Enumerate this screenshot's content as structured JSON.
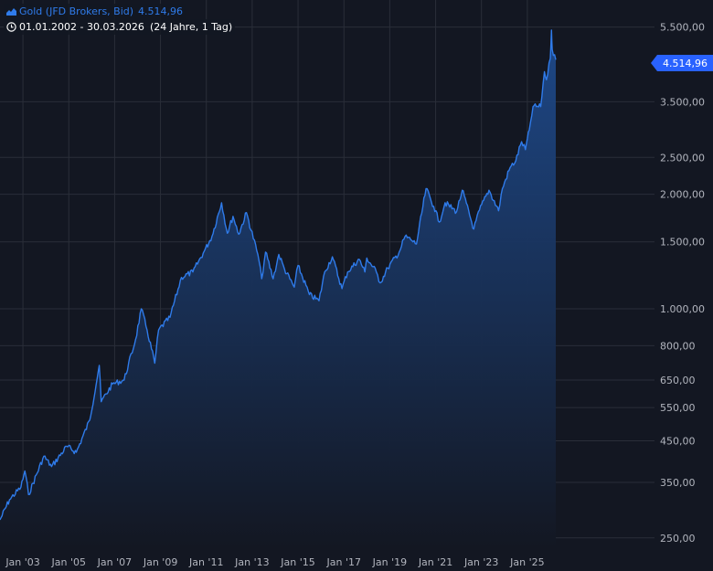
{
  "legend": {
    "title": "Gold (JFD Brokers, Bid)",
    "last_price": "4.514,96",
    "range": "01.01.2002 - 30.03.2026",
    "duration": "(24 Jahre, 1 Tag)",
    "line_icon": "area-chart-icon",
    "range_icon": "clock-icon"
  },
  "last_price_tag": "4.514,96",
  "colors": {
    "background": "#131722",
    "grid": "#2a2e39",
    "line": "#2f7bea",
    "area_top": "#1e4a8c",
    "area_bottom": "#131722",
    "axis_text": "#b2b5be",
    "tag_bg": "#2962ff"
  },
  "chart_data": {
    "type": "area",
    "title": "Gold (JFD Brokers, Bid)",
    "y_scale": "log",
    "ylim": [
      235,
      6200
    ],
    "xlim": [
      "2002-01-01",
      "2026-03-30"
    ],
    "grid": true,
    "x_ticks": [
      {
        "date": "2003-01-01",
        "label": "Jan '03"
      },
      {
        "date": "2005-01-01",
        "label": "Jan '05"
      },
      {
        "date": "2007-01-01",
        "label": "Jan '07"
      },
      {
        "date": "2009-01-01",
        "label": "Jan '09"
      },
      {
        "date": "2011-01-01",
        "label": "Jan '11"
      },
      {
        "date": "2013-01-01",
        "label": "Jan '13"
      },
      {
        "date": "2015-01-01",
        "label": "Jan '15"
      },
      {
        "date": "2017-01-01",
        "label": "Jan '17"
      },
      {
        "date": "2019-01-01",
        "label": "Jan '19"
      },
      {
        "date": "2021-01-01",
        "label": "Jan '21"
      },
      {
        "date": "2023-01-01",
        "label": "Jan '23"
      },
      {
        "date": "2025-01-01",
        "label": "Jan '25"
      }
    ],
    "y_ticks": [
      {
        "value": 5500,
        "label": "5.500,00"
      },
      {
        "value": 3500,
        "label": "3.500,00"
      },
      {
        "value": 2500,
        "label": "2.500,00"
      },
      {
        "value": 2000,
        "label": "2.000,00"
      },
      {
        "value": 1500,
        "label": "1.500,00"
      },
      {
        "value": 1000,
        "label": "1.000,00"
      },
      {
        "value": 800,
        "label": "800,00"
      },
      {
        "value": 650,
        "label": "650,00"
      },
      {
        "value": 550,
        "label": "550,00"
      },
      {
        "value": 450,
        "label": "450,00"
      },
      {
        "value": 350,
        "label": "350,00"
      },
      {
        "value": 250,
        "label": "250,00"
      }
    ],
    "series": [
      {
        "values": [
          [
            "2002-01-01",
            279
          ],
          [
            "2002-06-01",
            315
          ],
          [
            "2002-12-01",
            340
          ],
          [
            "2003-02-01",
            375
          ],
          [
            "2003-04-01",
            325
          ],
          [
            "2003-12-01",
            410
          ],
          [
            "2004-04-01",
            385
          ],
          [
            "2004-12-01",
            435
          ],
          [
            "2005-05-01",
            420
          ],
          [
            "2005-12-01",
            510
          ],
          [
            "2006-05-01",
            710
          ],
          [
            "2006-06-01",
            570
          ],
          [
            "2006-12-01",
            635
          ],
          [
            "2007-06-01",
            650
          ],
          [
            "2007-12-01",
            830
          ],
          [
            "2008-03-01",
            1000
          ],
          [
            "2008-06-01",
            880
          ],
          [
            "2008-10-01",
            720
          ],
          [
            "2008-12-01",
            880
          ],
          [
            "2009-06-01",
            950
          ],
          [
            "2009-12-01",
            1210
          ],
          [
            "2010-06-01",
            1250
          ],
          [
            "2010-12-01",
            1420
          ],
          [
            "2011-04-01",
            1550
          ],
          [
            "2011-09-01",
            1900
          ],
          [
            "2011-12-01",
            1580
          ],
          [
            "2012-03-01",
            1750
          ],
          [
            "2012-06-01",
            1570
          ],
          [
            "2012-10-01",
            1790
          ],
          [
            "2013-04-01",
            1390
          ],
          [
            "2013-06-01",
            1200
          ],
          [
            "2013-08-01",
            1410
          ],
          [
            "2013-12-01",
            1200
          ],
          [
            "2014-03-01",
            1390
          ],
          [
            "2014-06-01",
            1270
          ],
          [
            "2014-11-01",
            1140
          ],
          [
            "2015-01-01",
            1300
          ],
          [
            "2015-07-01",
            1090
          ],
          [
            "2015-12-01",
            1050
          ],
          [
            "2016-03-01",
            1250
          ],
          [
            "2016-07-01",
            1370
          ],
          [
            "2016-12-01",
            1130
          ],
          [
            "2017-03-01",
            1250
          ],
          [
            "2017-09-01",
            1350
          ],
          [
            "2017-12-01",
            1250
          ],
          [
            "2018-01-01",
            1360
          ],
          [
            "2018-06-01",
            1250
          ],
          [
            "2018-08-01",
            1170
          ],
          [
            "2018-12-01",
            1280
          ],
          [
            "2019-06-01",
            1410
          ],
          [
            "2019-09-01",
            1550
          ],
          [
            "2019-12-01",
            1520
          ],
          [
            "2020-03-01",
            1480
          ],
          [
            "2020-08-01",
            2070
          ],
          [
            "2020-12-01",
            1860
          ],
          [
            "2021-03-01",
            1690
          ],
          [
            "2021-06-01",
            1900
          ],
          [
            "2021-12-01",
            1800
          ],
          [
            "2022-03-01",
            2050
          ],
          [
            "2022-09-01",
            1620
          ],
          [
            "2022-12-01",
            1820
          ],
          [
            "2023-05-01",
            2050
          ],
          [
            "2023-10-01",
            1810
          ],
          [
            "2023-12-01",
            2070
          ],
          [
            "2024-04-01",
            2350
          ],
          [
            "2024-07-01",
            2450
          ],
          [
            "2024-10-01",
            2750
          ],
          [
            "2024-12-01",
            2620
          ],
          [
            "2025-02-01",
            2950
          ],
          [
            "2025-04-01",
            3400
          ],
          [
            "2025-08-01",
            3400
          ],
          [
            "2025-10-01",
            4200
          ],
          [
            "2025-11-01",
            4000
          ],
          [
            "2026-01-01",
            4550
          ],
          [
            "2026-01-20",
            5400
          ],
          [
            "2026-02-01",
            4800
          ],
          [
            "2026-03-30",
            4514.96
          ]
        ]
      }
    ]
  }
}
